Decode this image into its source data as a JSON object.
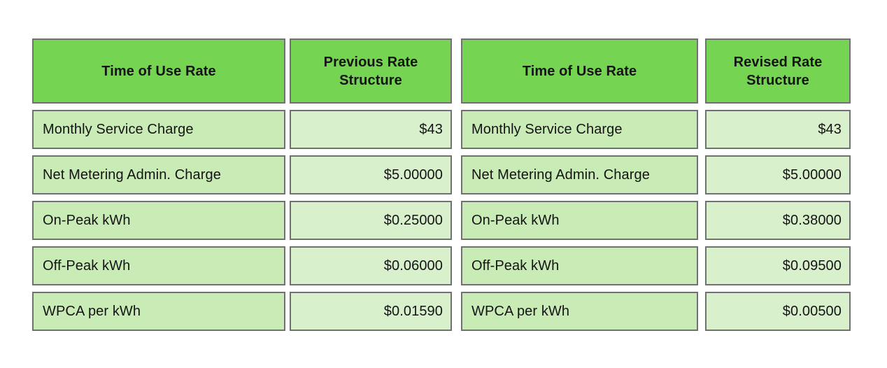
{
  "colors": {
    "page_bg": "#ffffff",
    "header_bg": "#75d553",
    "label_bg": "#c9ebb6",
    "value_bg": "#d9f0cc",
    "border": "#717171",
    "text": "#141414"
  },
  "chart_data": [
    {
      "type": "table",
      "title": "Previous rate structure table",
      "columns": [
        "Time of Use Rate",
        "Previous Rate Structure"
      ],
      "rows": [
        [
          "Monthly Service Charge",
          "$43"
        ],
        [
          "Net Metering Admin. Charge",
          "$5.00000"
        ],
        [
          "On-Peak kWh",
          "$0.25000"
        ],
        [
          "Off-Peak kWh",
          "$0.06000"
        ],
        [
          "WPCA per kWh",
          "$0.01590"
        ]
      ]
    },
    {
      "type": "table",
      "title": "Revised rate structure table",
      "columns": [
        "Time of Use Rate",
        "Revised Rate Structure"
      ],
      "rows": [
        [
          "Monthly Service Charge",
          "$43"
        ],
        [
          "Net Metering Admin. Charge",
          "$5.00000"
        ],
        [
          "On-Peak kWh",
          "$0.38000"
        ],
        [
          "Off-Peak kWh",
          "$0.09500"
        ],
        [
          "WPCA per kWh",
          "$0.00500"
        ]
      ]
    }
  ]
}
